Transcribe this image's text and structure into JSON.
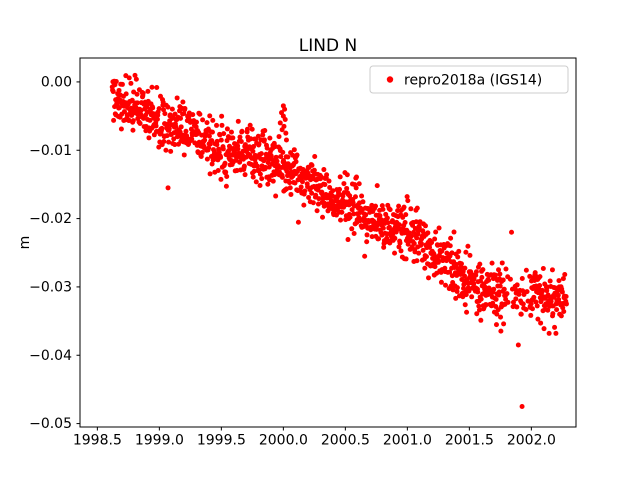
{
  "figure": {
    "title": "LIND N",
    "ylabel": "m"
  },
  "legend": {
    "label": "repro2018a (IGS14)",
    "marker_color": "#ff0000"
  },
  "chart_data": {
    "type": "scatter",
    "title": "LIND N",
    "xlabel": "",
    "ylabel": "m",
    "xlim": [
      1998.36,
      2002.36
    ],
    "ylim": [
      -0.0505,
      0.0035
    ],
    "xticks": [
      1998.5,
      1999.0,
      1999.5,
      2000.0,
      2000.5,
      2001.0,
      2001.5,
      2002.0
    ],
    "yticks": [
      0.0,
      -0.01,
      -0.02,
      -0.03,
      -0.04,
      -0.05
    ],
    "grid": false,
    "legend_position": "upper right",
    "series": [
      {
        "name": "repro2018a (IGS14)",
        "color": "#ff0000",
        "marker": "point",
        "marker_radius_px": 2.5,
        "x_start": 1998.62,
        "x_end": 2002.285,
        "points_per_year": 365,
        "noise_sigma": 0.002,
        "trend_anchors": [
          [
            1998.62,
            -0.002
          ],
          [
            1998.8,
            -0.004
          ],
          [
            1999.0,
            -0.0055
          ],
          [
            1999.2,
            -0.007
          ],
          [
            1999.4,
            -0.009
          ],
          [
            1999.55,
            -0.0102
          ],
          [
            1999.75,
            -0.011
          ],
          [
            1999.95,
            -0.012
          ],
          [
            2000.05,
            -0.013
          ],
          [
            2000.25,
            -0.0155
          ],
          [
            2000.5,
            -0.018
          ],
          [
            2000.75,
            -0.0205
          ],
          [
            2001.0,
            -0.022
          ],
          [
            2001.2,
            -0.025
          ],
          [
            2001.4,
            -0.028
          ],
          [
            2001.6,
            -0.0305
          ],
          [
            2001.75,
            -0.0312
          ],
          [
            2002.0,
            -0.031
          ],
          [
            2002.15,
            -0.0315
          ],
          [
            2002.285,
            -0.0315
          ]
        ],
        "sparse_ranges": [
          [
            2001.79,
            2001.99,
            0.55
          ]
        ],
        "outliers": [
          [
            1999.07,
            -0.0155
          ],
          [
            1999.965,
            -0.008
          ],
          [
            1999.975,
            -0.006
          ],
          [
            1999.985,
            -0.0045
          ],
          [
            1999.99,
            -0.007
          ],
          [
            2000.0,
            -0.0035
          ],
          [
            2000.0,
            -0.005
          ],
          [
            2000.005,
            -0.0065
          ],
          [
            2000.01,
            -0.004
          ],
          [
            2000.015,
            -0.0055
          ],
          [
            2000.02,
            -0.0075
          ],
          [
            2000.025,
            -0.0085
          ],
          [
            2001.84,
            -0.022
          ],
          [
            2001.895,
            -0.0385
          ],
          [
            2001.925,
            -0.0475
          ],
          [
            2002.17,
            -0.0275
          ]
        ]
      }
    ]
  }
}
